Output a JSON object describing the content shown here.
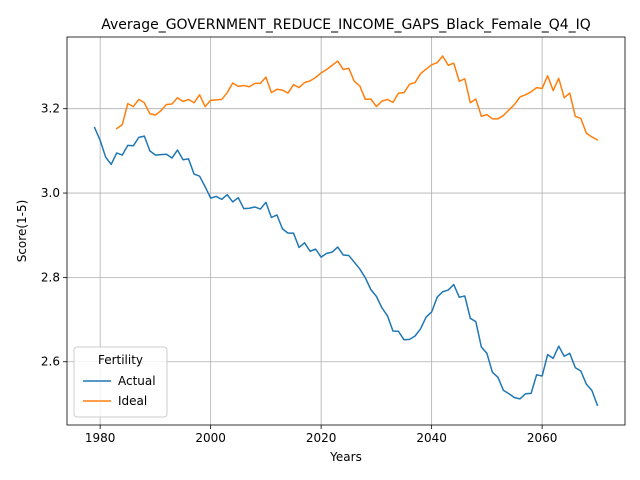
{
  "chart_data": {
    "type": "line",
    "title": "Average_GOVERNMENT_REDUCE_INCOME_GAPS_Black_Female_Q4_IQ",
    "xlabel": "Years",
    "ylabel": "Score(1-5)",
    "xlim": [
      1974,
      2075
    ],
    "ylim": [
      2.45,
      3.37
    ],
    "xticks": [
      1980,
      2000,
      2020,
      2040,
      2060
    ],
    "yticks": [
      2.6,
      2.8,
      3.0,
      3.2
    ],
    "xtick_labels": [
      "1980",
      "2000",
      "2020",
      "2040",
      "2060"
    ],
    "ytick_labels": [
      "2.6",
      "2.8",
      "3.0",
      "3.2"
    ],
    "grid": true,
    "legend": {
      "title": "Fertility",
      "placement": "lower-left"
    },
    "colors": {
      "Actual": "#1f77b4",
      "Ideal": "#ff7f0e"
    },
    "series": [
      {
        "name": "Actual",
        "x_start": 1979,
        "x_end": 2070,
        "values": [
          3.155,
          3.125,
          3.085,
          3.068,
          3.095,
          3.09,
          3.113,
          3.112,
          3.132,
          3.135,
          3.1,
          3.09,
          3.091,
          3.092,
          3.083,
          3.102,
          3.079,
          3.081,
          3.045,
          3.04,
          3.015,
          2.988,
          2.992,
          2.985,
          2.996,
          2.979,
          2.989,
          2.963,
          2.964,
          2.967,
          2.962,
          2.978,
          2.942,
          2.948,
          2.915,
          2.905,
          2.905,
          2.871,
          2.882,
          2.862,
          2.867,
          2.848,
          2.857,
          2.86,
          2.872,
          2.853,
          2.852,
          2.836,
          2.82,
          2.799,
          2.771,
          2.755,
          2.728,
          2.709,
          2.673,
          2.672,
          2.652,
          2.653,
          2.661,
          2.678,
          2.706,
          2.718,
          2.753,
          2.766,
          2.77,
          2.783,
          2.753,
          2.756,
          2.703,
          2.695,
          2.635,
          2.62,
          2.575,
          2.563,
          2.532,
          2.524,
          2.515,
          2.512,
          2.524,
          2.525,
          2.569,
          2.566,
          2.617,
          2.608,
          2.637,
          2.613,
          2.62,
          2.586,
          2.578,
          2.547,
          2.532,
          2.497
        ]
      },
      {
        "name": "Ideal",
        "x_start": 1983,
        "x_end": 2070,
        "values": [
          3.153,
          3.162,
          3.212,
          3.205,
          3.222,
          3.214,
          3.188,
          3.185,
          3.195,
          3.21,
          3.211,
          3.226,
          3.217,
          3.222,
          3.214,
          3.233,
          3.205,
          3.22,
          3.221,
          3.222,
          3.238,
          3.261,
          3.253,
          3.255,
          3.252,
          3.26,
          3.26,
          3.275,
          3.238,
          3.246,
          3.244,
          3.237,
          3.257,
          3.25,
          3.262,
          3.266,
          3.274,
          3.285,
          3.293,
          3.303,
          3.313,
          3.293,
          3.296,
          3.265,
          3.254,
          3.222,
          3.223,
          3.205,
          3.218,
          3.222,
          3.215,
          3.237,
          3.238,
          3.258,
          3.262,
          3.283,
          3.294,
          3.304,
          3.309,
          3.325,
          3.303,
          3.308,
          3.265,
          3.271,
          3.214,
          3.223,
          3.182,
          3.186,
          3.176,
          3.176,
          3.184,
          3.197,
          3.21,
          3.228,
          3.233,
          3.24,
          3.25,
          3.248,
          3.278,
          3.243,
          3.272,
          3.226,
          3.237,
          3.182,
          3.177,
          3.142,
          3.133,
          3.126
        ]
      }
    ]
  }
}
